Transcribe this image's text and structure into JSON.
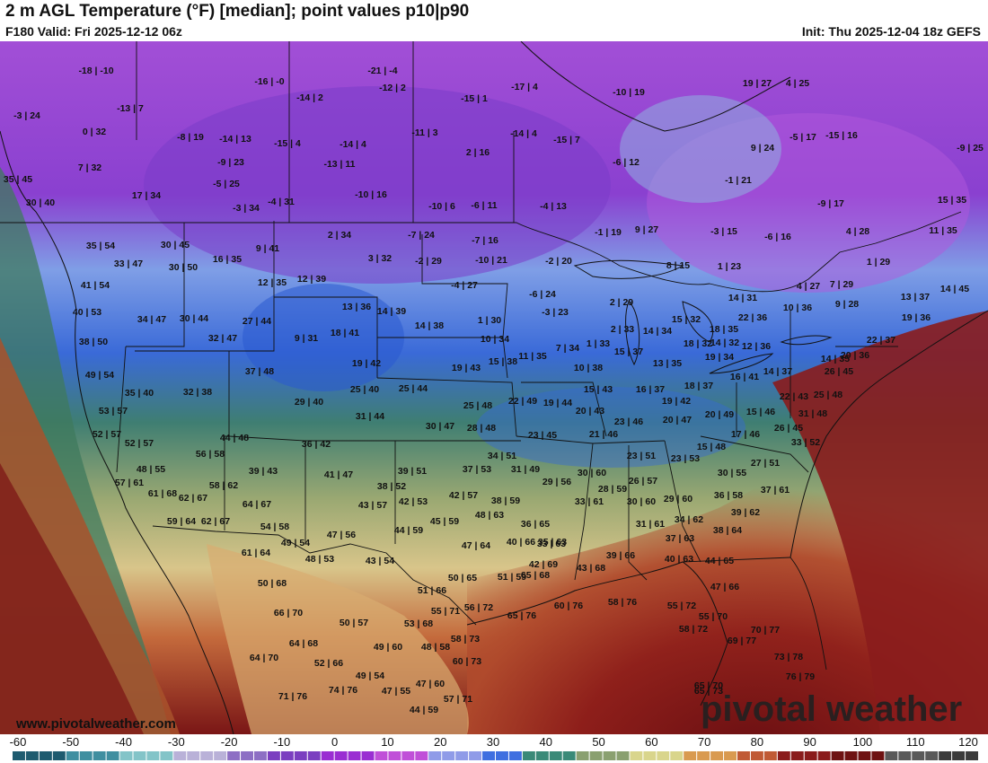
{
  "header": {
    "title": "2 m AGL Temperature (°F) [median]; point values p10|p90",
    "valid": "F180 Valid: Fri 2025-12-12 06z",
    "init": "Init: Thu 2025-12-04 18z GEFS"
  },
  "branding": {
    "url": "www.pivotalweather.com",
    "logo": "pivotal weather"
  },
  "colorbar": {
    "ticks": [
      "-60",
      "-50",
      "-40",
      "-30",
      "-20",
      "-10",
      "0",
      "10",
      "20",
      "30",
      "40",
      "50",
      "60",
      "70",
      "80",
      "90",
      "100",
      "110",
      "120"
    ],
    "min": -60,
    "max": 120,
    "colors": [
      "#1e5b6f",
      "#3f8fa0",
      "#83c4c8",
      "#b9b1d8",
      "#8d6fc4",
      "#7b3fc0",
      "#9a2ed2",
      "#c050d8",
      "#8f9be8",
      "#3f6fe0",
      "#3a8a78",
      "#8aa070",
      "#d9d58c",
      "#d99a50",
      "#c05a35",
      "#8a1c1c",
      "#6e1212",
      "#5a5a5a",
      "#3c3c3c"
    ]
  },
  "point_values": [
    "-18 | -10",
    "-16 | -0",
    "-21 | -4",
    "-12 | 2",
    "-17 | 4",
    "-10 | 19",
    "19 | 27",
    "4 | 25",
    "-3 | 24",
    "-13 | 7",
    "-14 | 2",
    "-15 | 1",
    "0 | 32",
    "-11 | 3",
    "-14 | 4",
    "-15 | 7",
    "-5 | 17",
    "-15 | 16",
    "-8 | 19",
    "-14 | 13",
    "-15 | 4",
    "-14 | 4",
    "9 | 24",
    "7 | 32",
    "-9 | 23",
    "-13 | 11",
    "2 | 16",
    "-6 | 12",
    "-9 | 25",
    "35 | 45",
    "-5 | 25",
    "-1 | 21",
    "17 | 34",
    "-3 | 34",
    "-4 | 31",
    "-10 | 16",
    "-10 | 6",
    "-6 | 11",
    "-4 | 13",
    "-9 | 17",
    "15 | 35",
    "30 | 40",
    "35 | 54",
    "30 | 45",
    "9 | 41",
    "2 | 34",
    "-7 | 24",
    "-1 | 19",
    "9 | 27",
    "-3 | 15",
    "-6 | 16",
    "4 | 28",
    "11 | 35",
    "33 | 47",
    "16 | 35",
    "3 | 32",
    "-2 | 29",
    "-10 | 21",
    "-7 | 16",
    "-2 | 20",
    "8 | 15",
    "1 | 23",
    "1 | 29",
    "41 | 54",
    "30 | 50",
    "12 | 35",
    "12 | 39",
    "-4 | 27",
    "-6 | 24",
    "2 | 29",
    "14 | 31",
    "4 | 27",
    "7 | 29",
    "14 | 45",
    "40 | 53",
    "34 | 47",
    "30 | 44",
    "13 | 36",
    "14 | 39",
    "-3 | 23",
    "10 | 36",
    "9 | 28",
    "13 | 37",
    "27 | 44",
    "18 | 41",
    "1 | 30",
    "2 | 33",
    "15 | 32",
    "22 | 36",
    "19 | 36",
    "38 | 50",
    "32 | 47",
    "9 | 31",
    "14 | 38",
    "10 | 34",
    "14 | 34",
    "18 | 35",
    "14 | 32",
    "22 | 37",
    "7 | 34",
    "1 | 33",
    "18 | 32",
    "12 | 36",
    "20 | 36",
    "37 | 48",
    "19 | 42",
    "19 | 43",
    "15 | 38",
    "11 | 35",
    "10 | 38",
    "15 | 37",
    "13 | 35",
    "19 | 34",
    "14 | 37",
    "14 | 35",
    "49 | 54",
    "26 | 45",
    "35 | 40",
    "32 | 38",
    "25 | 40",
    "25 | 44",
    "15 | 43",
    "16 | 37",
    "18 | 37",
    "16 | 41",
    "29 | 40",
    "22 | 49",
    "19 | 44",
    "20 | 43",
    "19 | 42",
    "22 | 43",
    "25 | 48",
    "53 | 57",
    "31 | 44",
    "25 | 48",
    "20 | 47",
    "20 | 49",
    "15 | 46",
    "31 | 48",
    "30 | 47",
    "28 | 48",
    "23 | 46",
    "26 | 45",
    "52 | 57",
    "44 | 48",
    "23 | 45",
    "21 | 46",
    "17 | 46",
    "33 | 52",
    "52 | 57",
    "36 | 42",
    "15 | 48",
    "56 | 58",
    "34 | 51",
    "23 | 51",
    "23 | 53",
    "27 | 51",
    "48 | 55",
    "39 | 43",
    "41 | 47",
    "39 | 51",
    "37 | 53",
    "31 | 49",
    "30 | 60",
    "30 | 55",
    "57 | 61",
    "58 | 62",
    "38 | 52",
    "29 | 56",
    "26 | 57",
    "36 | 58",
    "37 | 61",
    "61 | 68",
    "62 | 67",
    "42 | 57",
    "28 | 59",
    "43 | 57",
    "42 | 53",
    "38 | 59",
    "30 | 60",
    "29 | 60",
    "39 | 62",
    "64 | 67",
    "33 | 61",
    "48 | 63",
    "59 | 64",
    "62 | 67",
    "45 | 59",
    "36 | 65",
    "33 | 63",
    "31 | 61",
    "34 | 62",
    "38 | 64",
    "54 | 58",
    "44 | 59",
    "47 | 56",
    "49 | 54",
    "40 | 66",
    "35 | 63",
    "37 | 63",
    "47 | 64",
    "61 | 64",
    "48 | 53",
    "43 | 54",
    "42 | 69",
    "39 | 66",
    "40 | 63",
    "44 | 65",
    "50 | 68",
    "43 | 68",
    "47 | 66",
    "65 | 68",
    "50 | 65",
    "51 | 66",
    "51 | 59",
    "56 | 72",
    "58 | 76",
    "66 | 70",
    "55 | 71",
    "65 | 76",
    "60 | 76",
    "55 | 72",
    "55 | 70",
    "50 | 57",
    "53 | 68",
    "64 | 68",
    "58 | 73",
    "58 | 72",
    "70 | 77",
    "69 | 77",
    "49 | 60",
    "48 | 58",
    "64 | 70",
    "52 | 66",
    "60 | 73",
    "73 | 78",
    "65 | 70",
    "49 | 54",
    "76 | 79",
    "47 | 60",
    "71 | 76",
    "74 | 76",
    "47 | 55",
    "57 | 71",
    "65 | 73",
    "44 | 59"
  ]
}
